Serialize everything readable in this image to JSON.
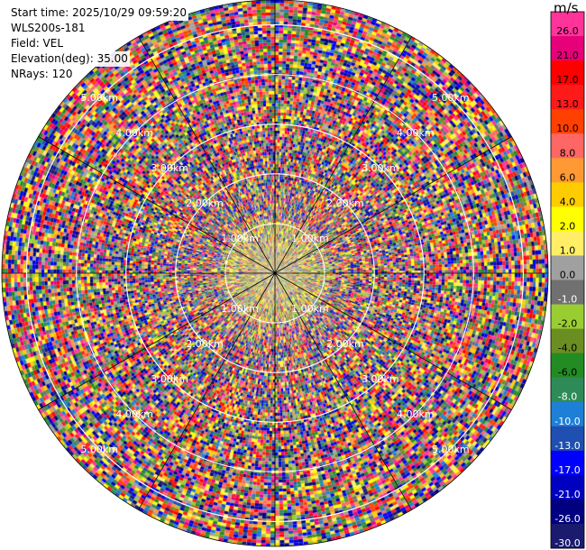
{
  "info": {
    "start_time": "Start time: 2025/10/29 09:59:20",
    "station": "WLS200s-181",
    "field": "Field: VEL",
    "elevation": "Elevation(deg): 35.00",
    "nrays": "NRays: 120"
  },
  "chart_data": {
    "type": "heatmap",
    "projection": "polar (PPI)",
    "field": "VEL",
    "unit": "m/s",
    "n_rays": 120,
    "elevation_deg": 35.0,
    "range_rings_km": [
      1.0,
      2.0,
      3.0,
      4.0,
      5.0
    ],
    "ring_labels": [
      "1.00km",
      "2.00km",
      "3.00km",
      "4.00km",
      "5.00km"
    ],
    "colorbar": {
      "label": "m/s",
      "tick_labels": [
        "26.0",
        "21.0",
        "17.0",
        "13.0",
        "10.0",
        "8.0",
        "6.0",
        "4.0",
        "2.0",
        "1.0",
        "0.0",
        "-1.0",
        "-2.0",
        "-4.0",
        "-6.0",
        "-8.0",
        "-10.0",
        "-13.0",
        "-17.0",
        "-21.0",
        "-26.0",
        "-30.0"
      ],
      "colors": [
        "#ff3399",
        "#e6007a",
        "#ff0000",
        "#ff1a1a",
        "#ff4000",
        "#ff6666",
        "#ff9933",
        "#ffcc00",
        "#ffff00",
        "#ffee66",
        "#a0a0a0",
        "#707070",
        "#9acd32",
        "#6b8e23",
        "#228b22",
        "#2e8b57",
        "#1e7fd6",
        "#1f4fb0",
        "#0000ff",
        "#0000c0",
        "#000080",
        "#1a1a6e"
      ]
    }
  }
}
